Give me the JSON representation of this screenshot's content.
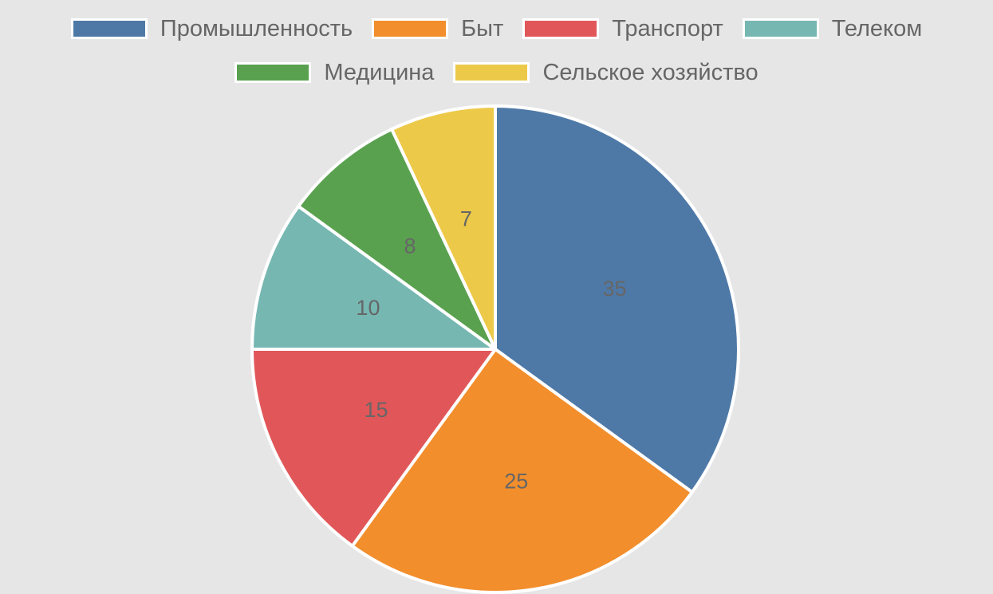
{
  "chart_data": {
    "type": "pie",
    "categories": [
      "Промышленность",
      "Быт",
      "Транспорт",
      "Телеком",
      "Медицина",
      "Сельское хозяйство"
    ],
    "values": [
      35,
      25,
      15,
      10,
      8,
      7
    ],
    "colors": [
      "#4e79a7",
      "#f28e2c",
      "#e15759",
      "#76b7b2",
      "#59a14f",
      "#edc949"
    ],
    "data_labels": [
      "35",
      "25",
      "15",
      "10",
      "8",
      "7"
    ],
    "legend_position": "top",
    "start_angle": "12 o'clock, clockwise"
  }
}
